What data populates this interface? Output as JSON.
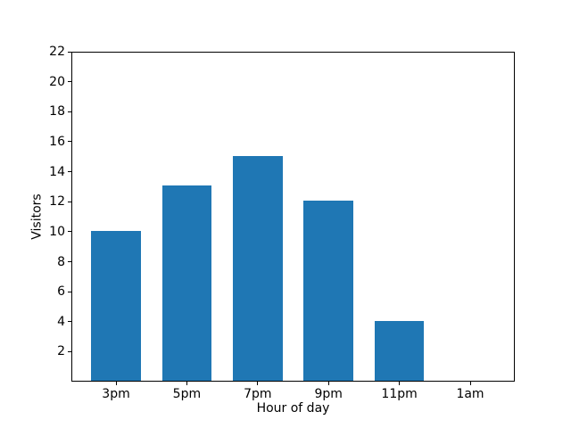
{
  "chart_data": {
    "type": "bar",
    "title": "",
    "categories": [
      "3pm",
      "5pm",
      "7pm",
      "9pm",
      "11pm",
      "1am"
    ],
    "values": [
      10,
      13,
      15,
      12,
      4,
      0
    ],
    "xlabel": "Hour of day",
    "ylabel": "Visitors",
    "ylim": [
      0,
      22
    ],
    "yticks": [
      2,
      4,
      6,
      8,
      10,
      12,
      14,
      16,
      18,
      20,
      22
    ],
    "bar_color": "#1f77b4",
    "background_color": "#ffffff",
    "grid": false,
    "legend": false
  }
}
